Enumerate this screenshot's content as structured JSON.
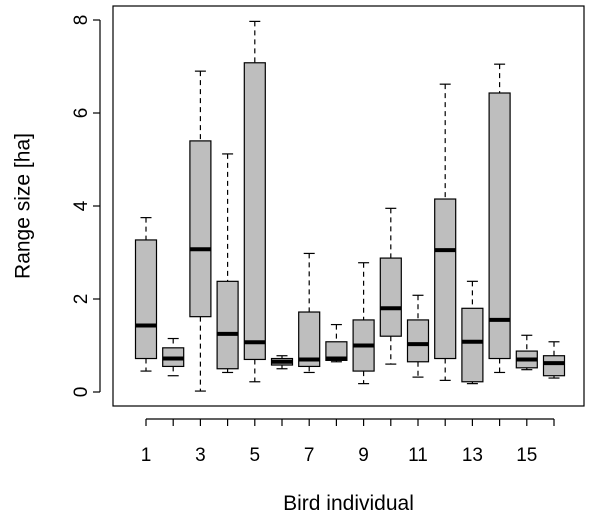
{
  "chart_data": {
    "type": "boxplot",
    "title": "",
    "xlabel": "Bird individual",
    "ylabel": "Range size [ha]",
    "ylim": [
      0,
      8
    ],
    "yticks": [
      0,
      2,
      4,
      6,
      8
    ],
    "categories": [
      "1",
      "2",
      "3",
      "4",
      "5",
      "6",
      "7",
      "8",
      "9",
      "10",
      "11",
      "12",
      "13",
      "14",
      "15",
      "16"
    ],
    "xtick_labels_shown": [
      "1",
      "3",
      "5",
      "7",
      "9",
      "11",
      "13",
      "15"
    ],
    "grid": false,
    "legend": "none",
    "box_color": "#bebebe",
    "boxes": [
      {
        "min": 0.45,
        "q1": 0.72,
        "median": 1.43,
        "q3": 3.27,
        "max": 3.75
      },
      {
        "min": 0.35,
        "q1": 0.55,
        "median": 0.72,
        "q3": 0.95,
        "max": 1.15
      },
      {
        "min": 0.02,
        "q1": 1.62,
        "median": 3.07,
        "q3": 5.4,
        "max": 6.9
      },
      {
        "min": 0.42,
        "q1": 0.5,
        "median": 1.25,
        "q3": 2.38,
        "max": 5.12
      },
      {
        "min": 0.22,
        "q1": 0.7,
        "median": 1.07,
        "q3": 7.08,
        "max": 7.97
      },
      {
        "min": 0.5,
        "q1": 0.58,
        "median": 0.65,
        "q3": 0.72,
        "max": 0.78
      },
      {
        "min": 0.42,
        "q1": 0.55,
        "median": 0.7,
        "q3": 1.72,
        "max": 2.98
      },
      {
        "min": 0.65,
        "q1": 0.68,
        "median": 0.72,
        "q3": 1.08,
        "max": 1.45
      },
      {
        "min": 0.18,
        "q1": 0.45,
        "median": 1.0,
        "q3": 1.55,
        "max": 2.78
      },
      {
        "min": 0.6,
        "q1": 1.2,
        "median": 1.8,
        "q3": 2.88,
        "max": 3.95
      },
      {
        "min": 0.32,
        "q1": 0.65,
        "median": 1.03,
        "q3": 1.55,
        "max": 2.08
      },
      {
        "min": 0.25,
        "q1": 0.72,
        "median": 3.05,
        "q3": 4.15,
        "max": 6.62
      },
      {
        "min": 0.18,
        "q1": 0.22,
        "median": 1.08,
        "q3": 1.8,
        "max": 2.38
      },
      {
        "min": 0.42,
        "q1": 0.72,
        "median": 1.55,
        "q3": 6.43,
        "max": 7.05
      },
      {
        "min": 0.48,
        "q1": 0.52,
        "median": 0.7,
        "q3": 0.88,
        "max": 1.22
      },
      {
        "min": 0.3,
        "q1": 0.35,
        "median": 0.62,
        "q3": 0.78,
        "max": 1.08
      }
    ]
  }
}
